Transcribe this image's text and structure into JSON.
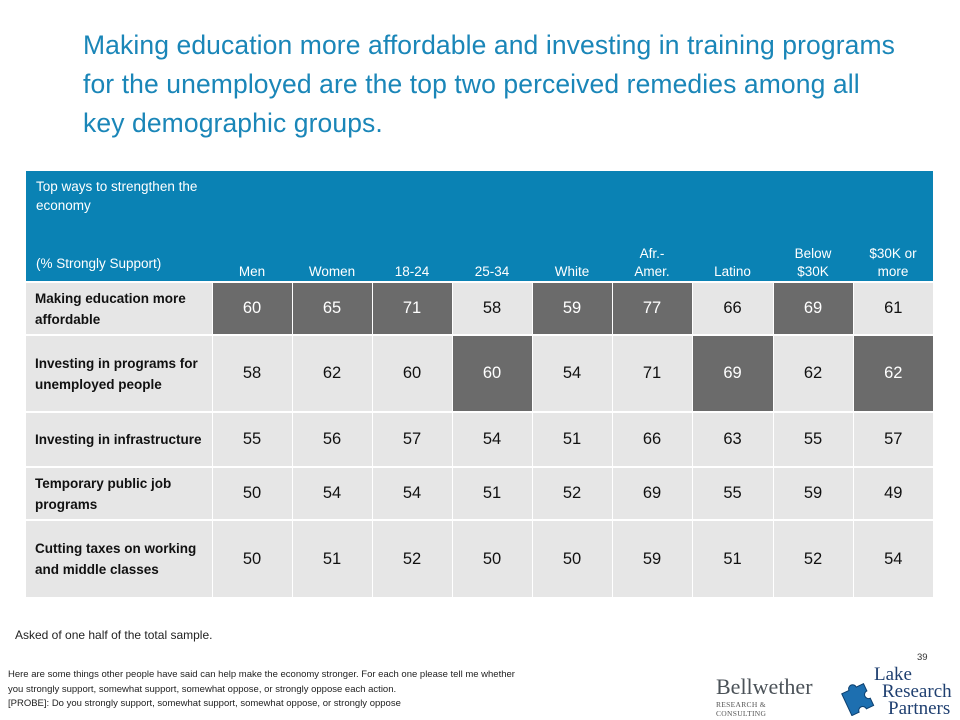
{
  "title": "Making education more affordable and investing in training programs for the unemployed are the top two perceived remedies among all key demographic groups.",
  "chart_data": {
    "type": "table",
    "row_header": {
      "question": "Top ways to strengthen the economy",
      "subtitle": "(% Strongly Support)"
    },
    "columns": [
      "Men",
      "Women",
      "18-24",
      "25-34",
      "White",
      "Afr.- Amer.",
      "Latino",
      "Below $30K",
      "$30K or more"
    ],
    "rows": [
      {
        "label": "Making education more affordable",
        "values": [
          "60",
          "65",
          "71",
          "58",
          "59",
          "77",
          "66",
          "69",
          "61"
        ],
        "highlight": [
          1,
          1,
          1,
          0,
          1,
          1,
          0,
          1,
          0
        ]
      },
      {
        "label": "Investing in programs for unemployed people",
        "values": [
          "58",
          "62",
          "60",
          "60",
          "54",
          "71",
          "69",
          "62",
          "62"
        ],
        "highlight": [
          0,
          0,
          0,
          1,
          0,
          0,
          1,
          0,
          1
        ]
      },
      {
        "label": "Investing in infrastructure",
        "values": [
          "55",
          "56",
          "57",
          "54",
          "51",
          "66",
          "63",
          "55",
          "57"
        ],
        "highlight": [
          0,
          0,
          0,
          0,
          0,
          0,
          0,
          0,
          0
        ]
      },
      {
        "label": "Temporary public job programs",
        "values": [
          "50",
          "54",
          "54",
          "51",
          "52",
          "69",
          "55",
          "59",
          "49"
        ],
        "highlight": [
          0,
          0,
          0,
          0,
          0,
          0,
          0,
          0,
          0
        ]
      },
      {
        "label": "Cutting taxes on working and middle classes",
        "values": [
          "50",
          "51",
          "52",
          "50",
          "50",
          "59",
          "51",
          "52",
          "54"
        ],
        "highlight": [
          0,
          0,
          0,
          0,
          0,
          0,
          0,
          0,
          0
        ]
      }
    ],
    "colors": {
      "header_bg": "#0a82b4",
      "cell_bg": "#e6e6e6",
      "highlight_bg": "#6b6b6b"
    }
  },
  "footnote": "Asked of one half of the total sample.",
  "page_number": "39",
  "question_text": [
    "Here are some things other people have said can help make the economy stronger.  For each one please tell me whether",
    "you strongly support, somewhat support, somewhat oppose, or strongly oppose each action.",
    "[PROBE]: Do you strongly support, somewhat support, somewhat oppose, or strongly oppose"
  ],
  "logos": {
    "bellwether": {
      "name": "Bellwether",
      "tagline": "RESEARCH & CONSULTING"
    },
    "lake_research": {
      "lines": [
        "Lake",
        "Research",
        "Partners"
      ]
    }
  }
}
